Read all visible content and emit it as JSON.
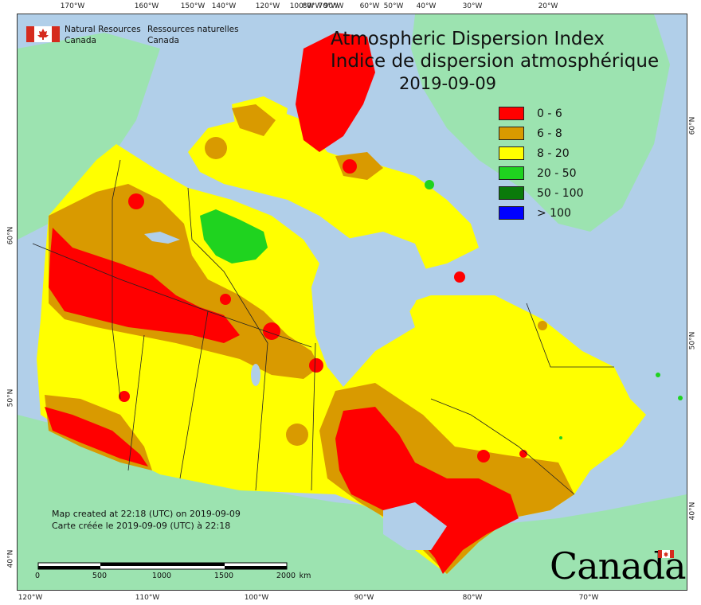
{
  "map": {
    "title_en": "Atmospheric Dispersion Index",
    "title_fr": "Indice de dispersion atmosphérique",
    "date": "2019-09-09"
  },
  "agency": {
    "name_en_line1": "Natural Resources",
    "name_en_line2": "Canada",
    "name_fr_line1": "Ressources naturelles",
    "name_fr_line2": "Canada"
  },
  "legend": {
    "items": [
      {
        "label": "0 - 6",
        "color": "#ff0000"
      },
      {
        "label": "6 - 8",
        "color": "#d99a00"
      },
      {
        "label": "8 - 20",
        "color": "#ffff00"
      },
      {
        "label": "20 - 50",
        "color": "#1fd31f"
      },
      {
        "label": "50 - 100",
        "color": "#0a7a0a"
      },
      {
        "label": "> 100",
        "color": "#0000ff"
      }
    ]
  },
  "colors": {
    "water": "#b1cfe9",
    "land_outside": "#9ce3b0",
    "ice": "#a8e8c4"
  },
  "credits": {
    "created_en": "Map created at 22:18 (UTC) on 2019-09-09",
    "created_fr": "Carte créée le 2019-09-09 (UTC) à 22:18"
  },
  "scale": {
    "labels": [
      "0",
      "500",
      "1000",
      "1500",
      "2000"
    ],
    "unit": "km"
  },
  "axes": {
    "top_ticks": [
      "170°W",
      "160°W",
      "150°W",
      "140°W",
      "120°W",
      "100°W",
      "90°W",
      "80°W",
      "70°W",
      "60°W",
      "50°W",
      "40°W",
      "30°W",
      "20°W"
    ],
    "bottom_ticks": [
      "120°W",
      "110°W",
      "100°W",
      "90°W",
      "80°W",
      "70°W"
    ],
    "left_ticks": [
      "60°N",
      "50°N",
      "40°N"
    ],
    "right_ticks": [
      "60°N",
      "50°N",
      "40°N"
    ]
  },
  "wordmark": "Canada"
}
